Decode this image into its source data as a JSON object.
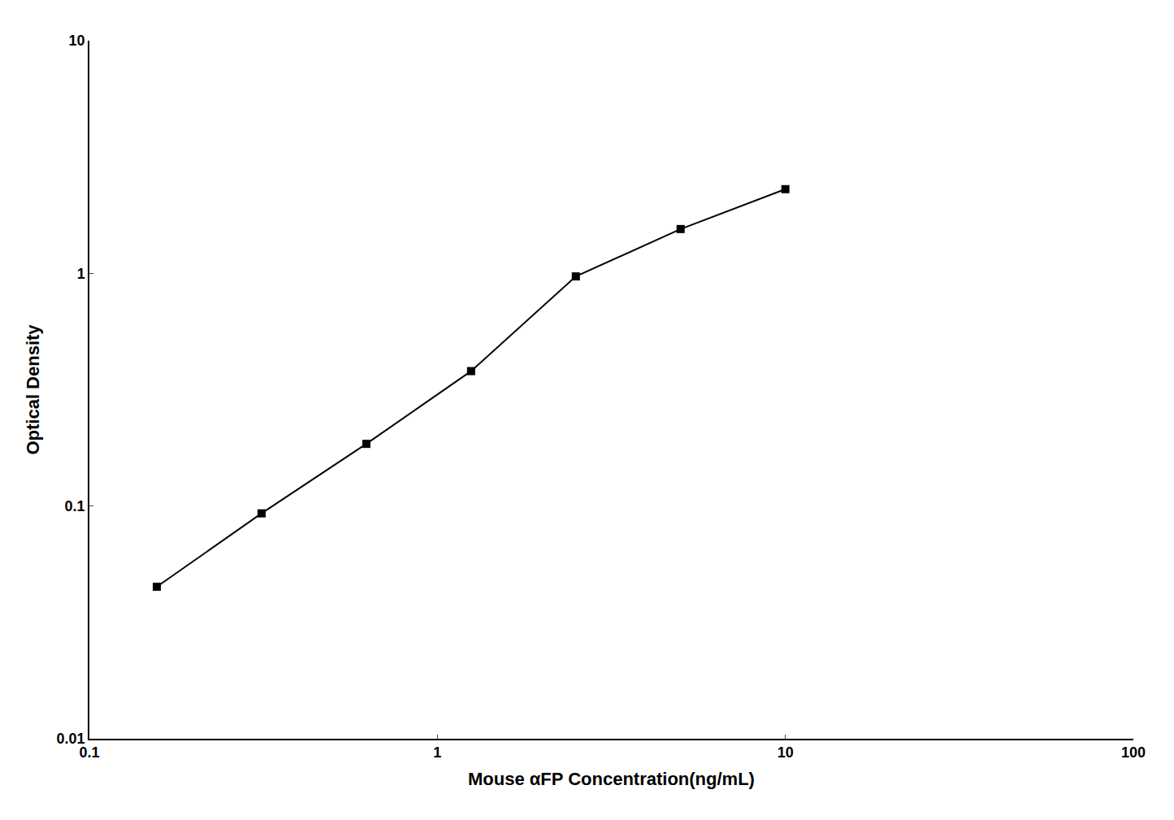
{
  "chart_data": {
    "type": "line",
    "x": [
      0.15625,
      0.3125,
      0.625,
      1.25,
      2.5,
      5.0,
      10.0
    ],
    "values": [
      0.045,
      0.093,
      0.185,
      0.38,
      0.97,
      1.55,
      2.3
    ],
    "xlabel": "Mouse αFP Concentration(ng/mL)",
    "ylabel": "Optical Density",
    "xlim": [
      0.1,
      100
    ],
    "ylim": [
      0.01,
      10
    ],
    "xticks": [
      0.1,
      1,
      10,
      100
    ],
    "yticks": [
      0.01,
      0.1,
      1,
      10
    ],
    "log": true,
    "grid": false,
    "color": "#000000",
    "marker": "square",
    "line_style": "solid"
  }
}
